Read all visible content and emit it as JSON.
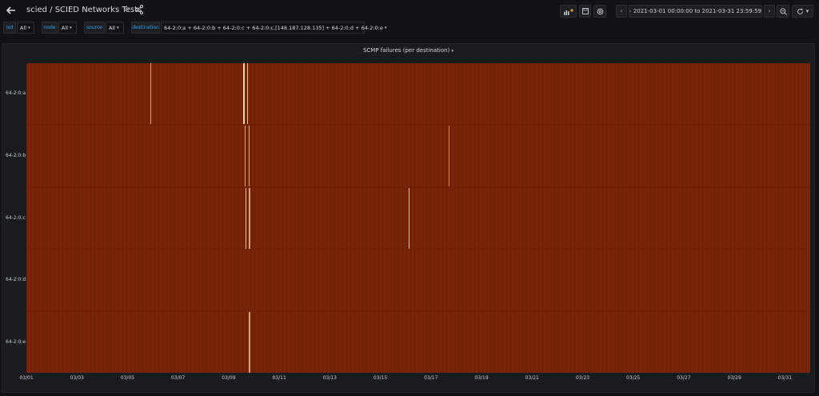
{
  "header": {
    "breadcrumb": "scied / SCIED Networks Tests",
    "time_range": "2021-03-01 00:00:00 to 2021-03-31 23:59:59"
  },
  "variables": [
    {
      "label": "isd",
      "value": "All"
    },
    {
      "label": "node",
      "value": "All"
    },
    {
      "label": "source",
      "value": "All"
    },
    {
      "label": "destination",
      "value": "64-2:0:a + 64-2:0:b + 64-2:0:c + 64-2:0:c,[148.187.128.135] + 64-2:0:d + 64-2:0:e"
    }
  ],
  "panel": {
    "title": "SCMP failures (per destination)",
    "chevron": "▾"
  },
  "chart_data": {
    "type": "heatmap",
    "title": "SCMP failures (per destination)",
    "rows": [
      "64-2:0:a",
      "64-2:0:b",
      "64-2:0:c",
      "64-2:0:d",
      "64-2:0:e"
    ],
    "x_ticks": [
      "03/01",
      "03/03",
      "03/05",
      "03/07",
      "03/09",
      "03/11",
      "03/13",
      "03/15",
      "03/17",
      "03/19",
      "03/21",
      "03/23",
      "03/25",
      "03/27",
      "03/29",
      "03/31"
    ],
    "x_range": [
      "2021-03-01",
      "2021-04-01"
    ],
    "base_color": "#772409",
    "highlights": [
      {
        "row": "64-2:0:a",
        "day": 5.9,
        "color": "#d9a07a"
      },
      {
        "row": "64-2:0:a",
        "day": 9.58,
        "color": "#f0d2b4"
      },
      {
        "row": "64-2:0:a",
        "day": 9.72,
        "color": "#e8bf9a"
      },
      {
        "row": "64-2:0:b",
        "day": 9.62,
        "color": "#d9a07a"
      },
      {
        "row": "64-2:0:b",
        "day": 9.78,
        "color": "#e0ae86"
      },
      {
        "row": "64-2:0:b",
        "day": 17.7,
        "color": "#d9820f"
      },
      {
        "row": "64-2:0:c",
        "day": 9.66,
        "color": "#e8bf9a"
      },
      {
        "row": "64-2:0:c",
        "day": 9.8,
        "color": "#d9a07a"
      },
      {
        "row": "64-2:0:c",
        "day": 16.12,
        "color": "#e8bf9a"
      },
      {
        "row": "64-2:0:e",
        "day": 9.8,
        "color": "#d9a07a"
      }
    ]
  }
}
